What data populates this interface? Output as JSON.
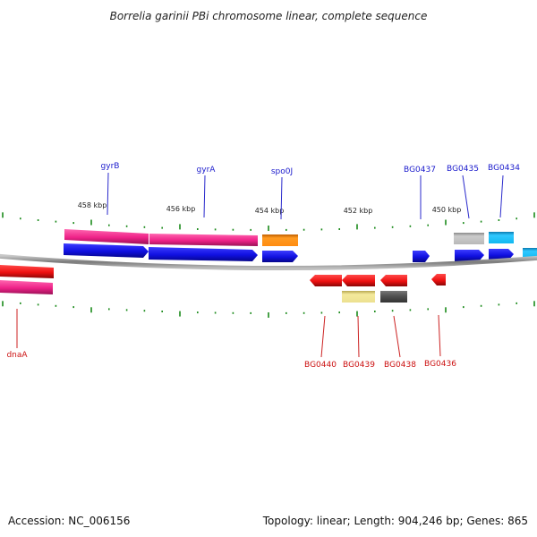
{
  "title": "Borrelia garinii PBi chromosome linear, complete sequence",
  "accession": "Accession: NC_006156",
  "topology": "Topology: linear; Length: 904,246 bp; Genes: 865",
  "scale_labels": [
    "458 kbp",
    "456 kbp",
    "454 kbp",
    "452 kbp",
    "450 kbp"
  ],
  "top_gene_labels": [
    "gyrB",
    "gyrA",
    "spo0J",
    "BG0437",
    "BG0435",
    "BG0434"
  ],
  "bottom_gene_labels": [
    "dnaA",
    "BG0440",
    "BG0439",
    "BG0438",
    "BG0436"
  ],
  "colors": {
    "forward_cds": "#1010e0",
    "reverse_cds": "#ee1111",
    "magenta": "#ee2288",
    "orange": "#ff8c10",
    "grey": "#b8b8b8",
    "dark_grey": "#555555",
    "cyan": "#10b8f0",
    "khaki": "#ece090",
    "backbone": "#888888",
    "tick": "#1a8a1a",
    "label_line_top": "#2a2acc",
    "label_line_bottom": "#cc2222"
  }
}
